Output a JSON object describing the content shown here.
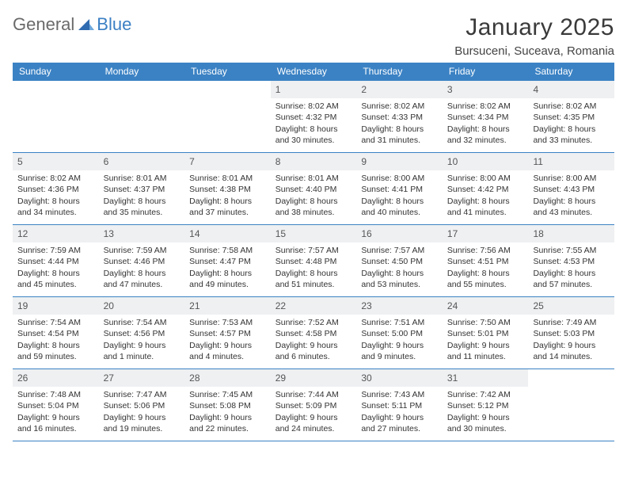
{
  "logo": {
    "word1": "General",
    "word2": "Blue"
  },
  "title": "January 2025",
  "location": "Bursuceni, Suceava, Romania",
  "colors": {
    "header_bg": "#3b82c4",
    "header_text": "#ffffff",
    "daynum_bg": "#eef0f2",
    "rule": "#3b82c4",
    "logo_gray": "#6a6a6a",
    "logo_blue": "#3b7fc4"
  },
  "dayNames": [
    "Sunday",
    "Monday",
    "Tuesday",
    "Wednesday",
    "Thursday",
    "Friday",
    "Saturday"
  ],
  "firstWeekday": 3,
  "daysInMonth": 31,
  "days": {
    "1": {
      "sunrise": "8:02 AM",
      "sunset": "4:32 PM",
      "dl_h": 8,
      "dl_m": 30
    },
    "2": {
      "sunrise": "8:02 AM",
      "sunset": "4:33 PM",
      "dl_h": 8,
      "dl_m": 31
    },
    "3": {
      "sunrise": "8:02 AM",
      "sunset": "4:34 PM",
      "dl_h": 8,
      "dl_m": 32
    },
    "4": {
      "sunrise": "8:02 AM",
      "sunset": "4:35 PM",
      "dl_h": 8,
      "dl_m": 33
    },
    "5": {
      "sunrise": "8:02 AM",
      "sunset": "4:36 PM",
      "dl_h": 8,
      "dl_m": 34
    },
    "6": {
      "sunrise": "8:01 AM",
      "sunset": "4:37 PM",
      "dl_h": 8,
      "dl_m": 35
    },
    "7": {
      "sunrise": "8:01 AM",
      "sunset": "4:38 PM",
      "dl_h": 8,
      "dl_m": 37
    },
    "8": {
      "sunrise": "8:01 AM",
      "sunset": "4:40 PM",
      "dl_h": 8,
      "dl_m": 38
    },
    "9": {
      "sunrise": "8:00 AM",
      "sunset": "4:41 PM",
      "dl_h": 8,
      "dl_m": 40
    },
    "10": {
      "sunrise": "8:00 AM",
      "sunset": "4:42 PM",
      "dl_h": 8,
      "dl_m": 41
    },
    "11": {
      "sunrise": "8:00 AM",
      "sunset": "4:43 PM",
      "dl_h": 8,
      "dl_m": 43
    },
    "12": {
      "sunrise": "7:59 AM",
      "sunset": "4:44 PM",
      "dl_h": 8,
      "dl_m": 45
    },
    "13": {
      "sunrise": "7:59 AM",
      "sunset": "4:46 PM",
      "dl_h": 8,
      "dl_m": 47
    },
    "14": {
      "sunrise": "7:58 AM",
      "sunset": "4:47 PM",
      "dl_h": 8,
      "dl_m": 49
    },
    "15": {
      "sunrise": "7:57 AM",
      "sunset": "4:48 PM",
      "dl_h": 8,
      "dl_m": 51
    },
    "16": {
      "sunrise": "7:57 AM",
      "sunset": "4:50 PM",
      "dl_h": 8,
      "dl_m": 53
    },
    "17": {
      "sunrise": "7:56 AM",
      "sunset": "4:51 PM",
      "dl_h": 8,
      "dl_m": 55
    },
    "18": {
      "sunrise": "7:55 AM",
      "sunset": "4:53 PM",
      "dl_h": 8,
      "dl_m": 57
    },
    "19": {
      "sunrise": "7:54 AM",
      "sunset": "4:54 PM",
      "dl_h": 8,
      "dl_m": 59
    },
    "20": {
      "sunrise": "7:54 AM",
      "sunset": "4:56 PM",
      "dl_h": 9,
      "dl_m": 1
    },
    "21": {
      "sunrise": "7:53 AM",
      "sunset": "4:57 PM",
      "dl_h": 9,
      "dl_m": 4
    },
    "22": {
      "sunrise": "7:52 AM",
      "sunset": "4:58 PM",
      "dl_h": 9,
      "dl_m": 6
    },
    "23": {
      "sunrise": "7:51 AM",
      "sunset": "5:00 PM",
      "dl_h": 9,
      "dl_m": 9
    },
    "24": {
      "sunrise": "7:50 AM",
      "sunset": "5:01 PM",
      "dl_h": 9,
      "dl_m": 11
    },
    "25": {
      "sunrise": "7:49 AM",
      "sunset": "5:03 PM",
      "dl_h": 9,
      "dl_m": 14
    },
    "26": {
      "sunrise": "7:48 AM",
      "sunset": "5:04 PM",
      "dl_h": 9,
      "dl_m": 16
    },
    "27": {
      "sunrise": "7:47 AM",
      "sunset": "5:06 PM",
      "dl_h": 9,
      "dl_m": 19
    },
    "28": {
      "sunrise": "7:45 AM",
      "sunset": "5:08 PM",
      "dl_h": 9,
      "dl_m": 22
    },
    "29": {
      "sunrise": "7:44 AM",
      "sunset": "5:09 PM",
      "dl_h": 9,
      "dl_m": 24
    },
    "30": {
      "sunrise": "7:43 AM",
      "sunset": "5:11 PM",
      "dl_h": 9,
      "dl_m": 27
    },
    "31": {
      "sunrise": "7:42 AM",
      "sunset": "5:12 PM",
      "dl_h": 9,
      "dl_m": 30
    }
  },
  "labels": {
    "sunrise": "Sunrise:",
    "sunset": "Sunset:",
    "daylight": "Daylight:",
    "hours": "hours",
    "and": "and",
    "minute": "minute",
    "minutes": "minutes"
  }
}
